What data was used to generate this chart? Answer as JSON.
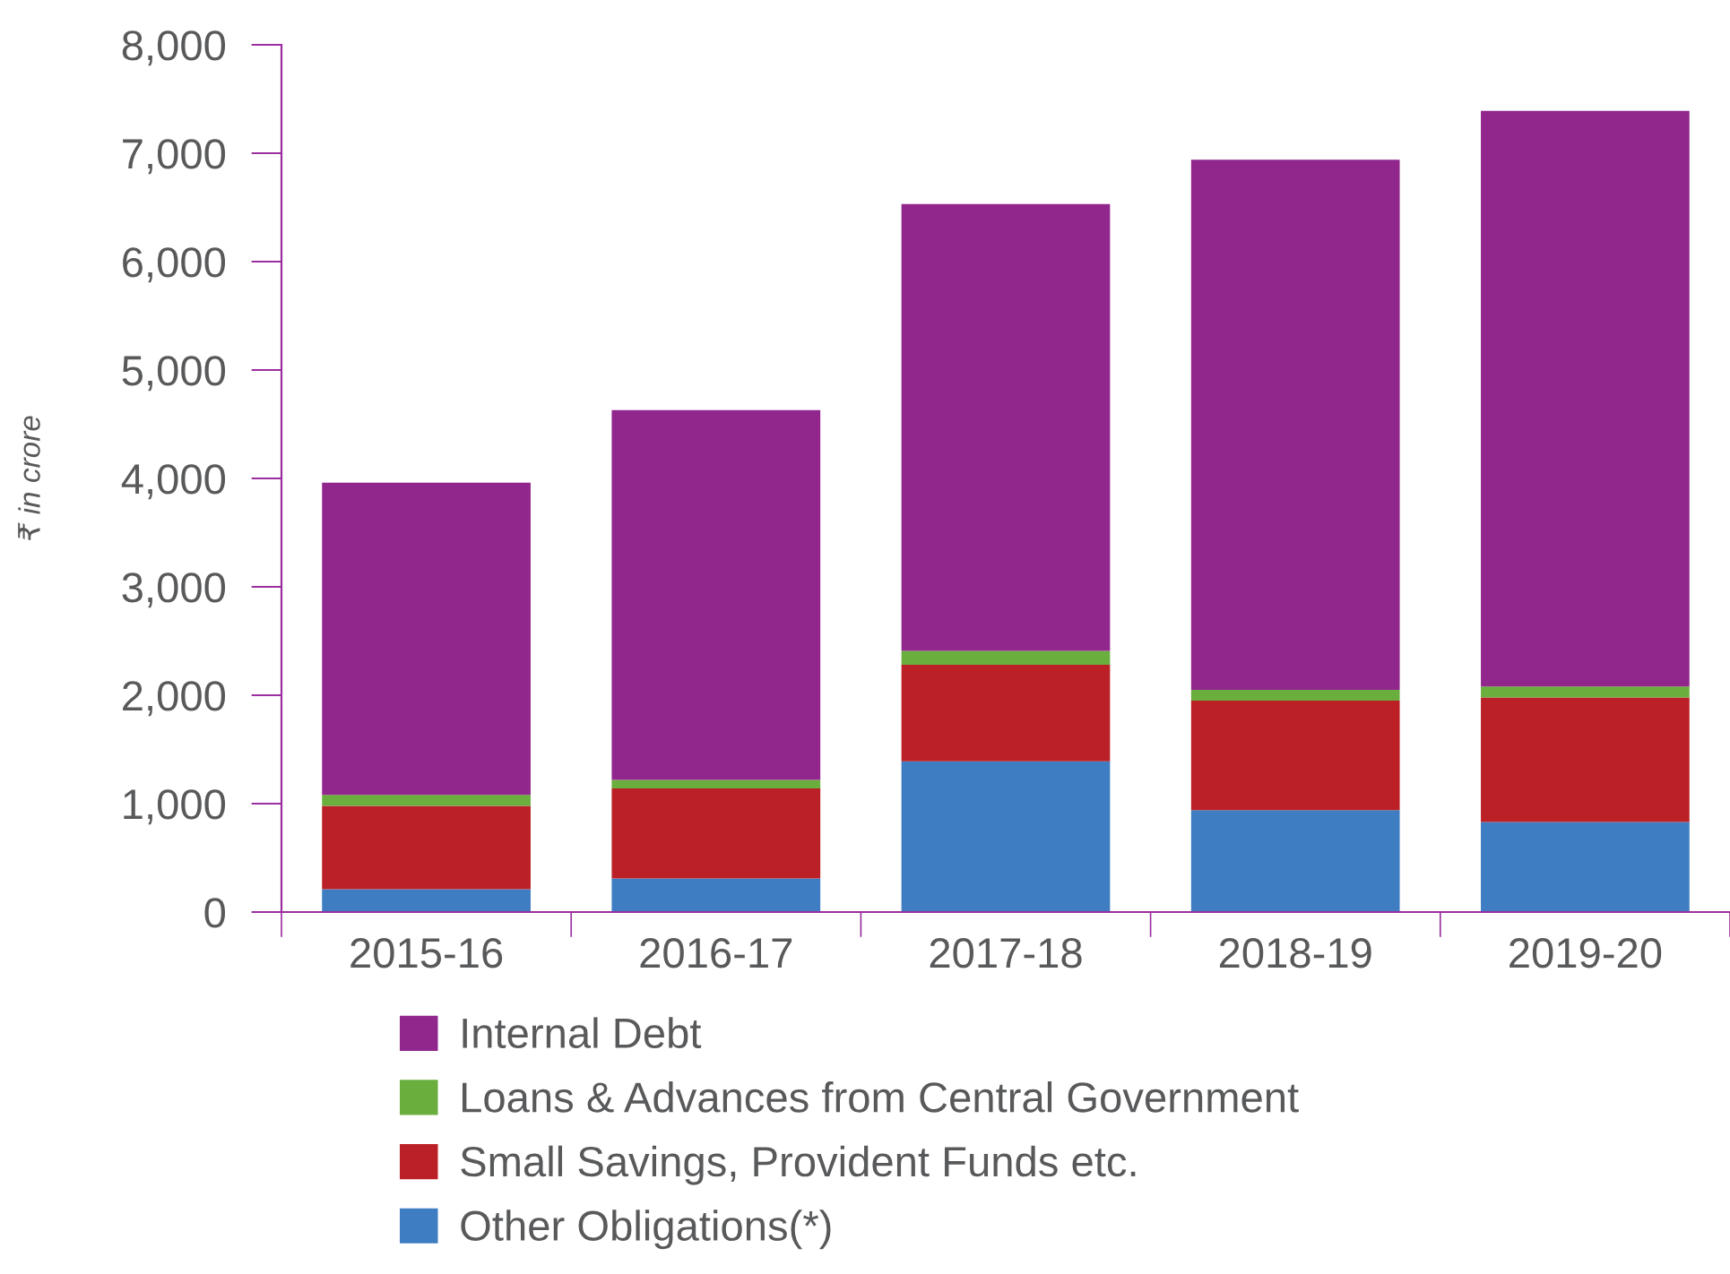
{
  "chart_data": {
    "type": "bar",
    "stacked": true,
    "ylabel": "₹ in crore",
    "categories": [
      "2015-16",
      "2016-17",
      "2017-18",
      "2018-19",
      "2019-20"
    ],
    "series": [
      {
        "name": "Other Obligations(*)",
        "color": "#3e7dc1",
        "values": [
          210,
          310,
          1390,
          940,
          830
        ]
      },
      {
        "name": "Small Savings, Provident Funds etc.",
        "color": "#bb2026",
        "values": [
          770,
          830,
          890,
          1010,
          1150
        ]
      },
      {
        "name": "Loans & Advances from Central Government",
        "color": "#6aae3e",
        "values": [
          100,
          80,
          130,
          100,
          100
        ]
      },
      {
        "name": "Internal Debt",
        "color": "#91278d",
        "values": [
          2880,
          3410,
          4120,
          4890,
          5310
        ]
      }
    ],
    "ylim": [
      0,
      8000
    ],
    "yticks": [
      {
        "value": 0,
        "label": "0"
      },
      {
        "value": 1000,
        "label": "1,000"
      },
      {
        "value": 2000,
        "label": "2,000"
      },
      {
        "value": 3000,
        "label": "3,000"
      },
      {
        "value": 4000,
        "label": "4,000"
      },
      {
        "value": 5000,
        "label": "5,000"
      },
      {
        "value": 6000,
        "label": "6,000"
      },
      {
        "value": 7000,
        "label": "7,000"
      },
      {
        "value": 8000,
        "label": "8,000"
      }
    ],
    "grid": false,
    "legend": "bottom"
  }
}
